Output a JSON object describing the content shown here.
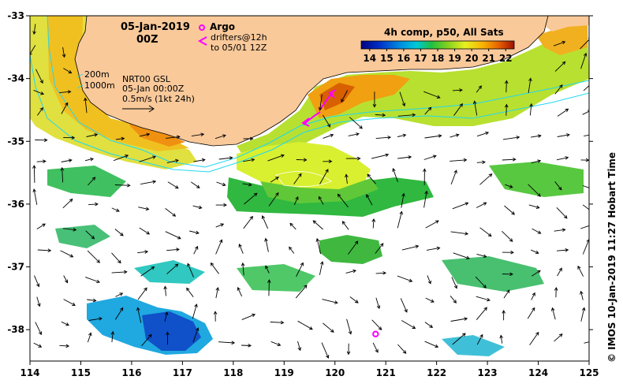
{
  "map": {
    "date": "05-Jan-2019",
    "time": "00Z",
    "argo_label": "Argo",
    "drifters_label_line1": "drifters@12h",
    "drifters_label_line2": "to 05/01 12Z",
    "isobath_200": "200m",
    "isobath_1000": "1000m",
    "product": "NRT00 GSL",
    "product_time": "05-Jan 00:00Z",
    "scale_label": "0.5m/s (1kt 24h)",
    "colorbar_title": "4h comp, p50, All Sats",
    "colorbar_ticks": [
      "14",
      "15",
      "16",
      "17",
      "18",
      "19",
      "20",
      "21",
      "22"
    ],
    "colorbar_min": 13.5,
    "colorbar_max": 22.5,
    "x_ticks": [
      "114",
      "115",
      "116",
      "117",
      "118",
      "119",
      "120",
      "121",
      "122",
      "123",
      "124",
      "125"
    ],
    "y_ticks": [
      "-33",
      "-34",
      "-35",
      "-36",
      "-37",
      "-38"
    ],
    "lon_range": [
      114,
      125
    ],
    "lat_range": [
      -33,
      -38.5
    ],
    "credit": "© IMOS 10-Jan-2019 11:27 Hobart Time",
    "argo_float": {
      "lon": 120.8,
      "lat": -38.07
    }
  },
  "colors": {
    "land": "#f9c99a",
    "ocean_nodata": "#ffffff",
    "isobath": "#22d8f0",
    "argo": "#ff00ff",
    "drifter": "#ff00ff",
    "current_arrow": "#000000"
  }
}
